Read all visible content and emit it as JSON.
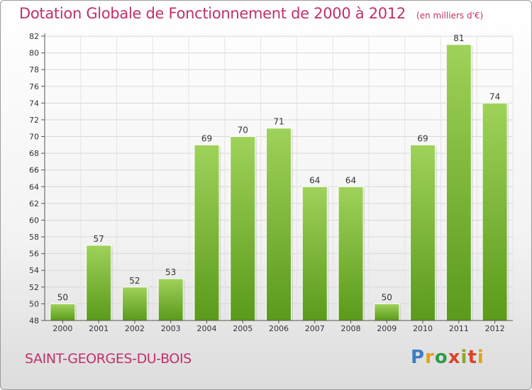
{
  "header": {
    "title": "Dotation Globale de Fonctionnement de 2000 à 2012",
    "unit": "(en milliers d'€)"
  },
  "footer": {
    "commune": "SAINT-GEORGES-DU-BOIS",
    "logo_text": "Proxiti"
  },
  "colors": {
    "title": "#c0306a",
    "bar_light": "#9fd25a",
    "bar_dark": "#5a9a1a",
    "grid": "#d8d8d8"
  },
  "chart_data": {
    "type": "bar",
    "categories": [
      "2000",
      "2001",
      "2002",
      "2003",
      "2004",
      "2005",
      "2006",
      "2007",
      "2008",
      "2009",
      "2010",
      "2011",
      "2012"
    ],
    "values": [
      50,
      57,
      52,
      53,
      69,
      70,
      71,
      64,
      64,
      50,
      69,
      81,
      74
    ],
    "title": "Dotation Globale de Fonctionnement de 2000 à 2012",
    "xlabel": "",
    "ylabel": "",
    "ylim": [
      48,
      82
    ],
    "yticks": [
      48,
      50,
      52,
      54,
      56,
      58,
      60,
      62,
      64,
      66,
      68,
      70,
      72,
      74,
      76,
      78,
      80,
      82
    ],
    "grid": true,
    "legend": "none"
  }
}
